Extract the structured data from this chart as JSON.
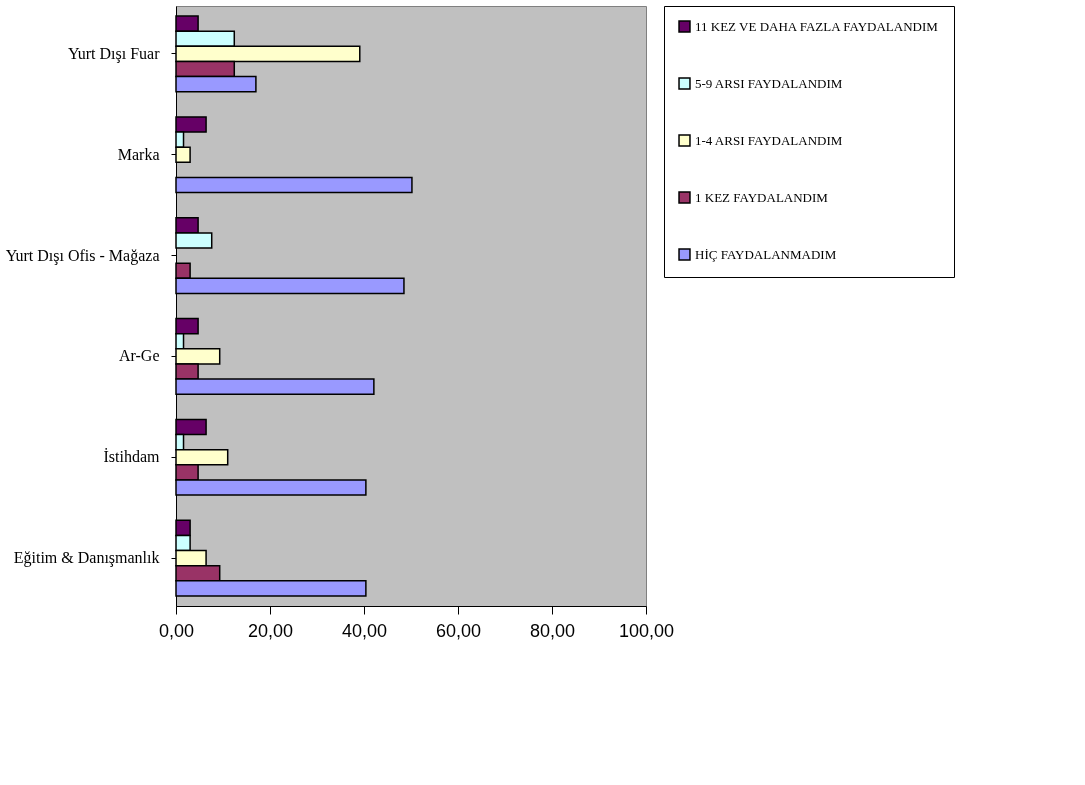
{
  "chart_data": {
    "type": "bar",
    "orientation": "horizontal",
    "categories": [
      "Yurt Dışı Fuar",
      "Marka",
      "Yurt Dışı Ofis - Mağaza",
      "Ar-Ge",
      "İstihdam",
      "Eğitim & Danışmanlık"
    ],
    "series": [
      {
        "name": "11 KEZ VE DAHA FAZLA FAYDALANDIM",
        "color": "#660066",
        "values": [
          4.7,
          6.4,
          4.7,
          4.7,
          6.4,
          3.0
        ]
      },
      {
        "name": "5-9 ARSI FAYDALANDIM",
        "color": "#ccffff",
        "values": [
          12.4,
          1.6,
          7.6,
          1.6,
          1.6,
          3.0
        ]
      },
      {
        "name": "1-4 ARSI FAYDALANDIM",
        "color": "#ffffcc",
        "values": [
          39.1,
          3.0,
          null,
          9.3,
          11.0,
          6.4
        ]
      },
      {
        "name": "1 KEZ FAYDALANDIM",
        "color": "#993366",
        "values": [
          12.4,
          null,
          3.0,
          4.7,
          4.7,
          9.3
        ]
      },
      {
        "name": "HİÇ FAYDALANMADIM",
        "color": "#9999ff",
        "values": [
          17.0,
          50.2,
          48.5,
          42.1,
          40.4,
          40.4
        ]
      }
    ],
    "xlim": [
      0,
      100
    ],
    "xticks": [
      {
        "value": 0,
        "label": "0,00"
      },
      {
        "value": 20,
        "label": "20,00"
      },
      {
        "value": 40,
        "label": "40,00"
      },
      {
        "value": 60,
        "label": "60,00"
      },
      {
        "value": 80,
        "label": "80,00"
      },
      {
        "value": 100,
        "label": "100,00"
      }
    ],
    "grid": false,
    "legend": "right"
  }
}
